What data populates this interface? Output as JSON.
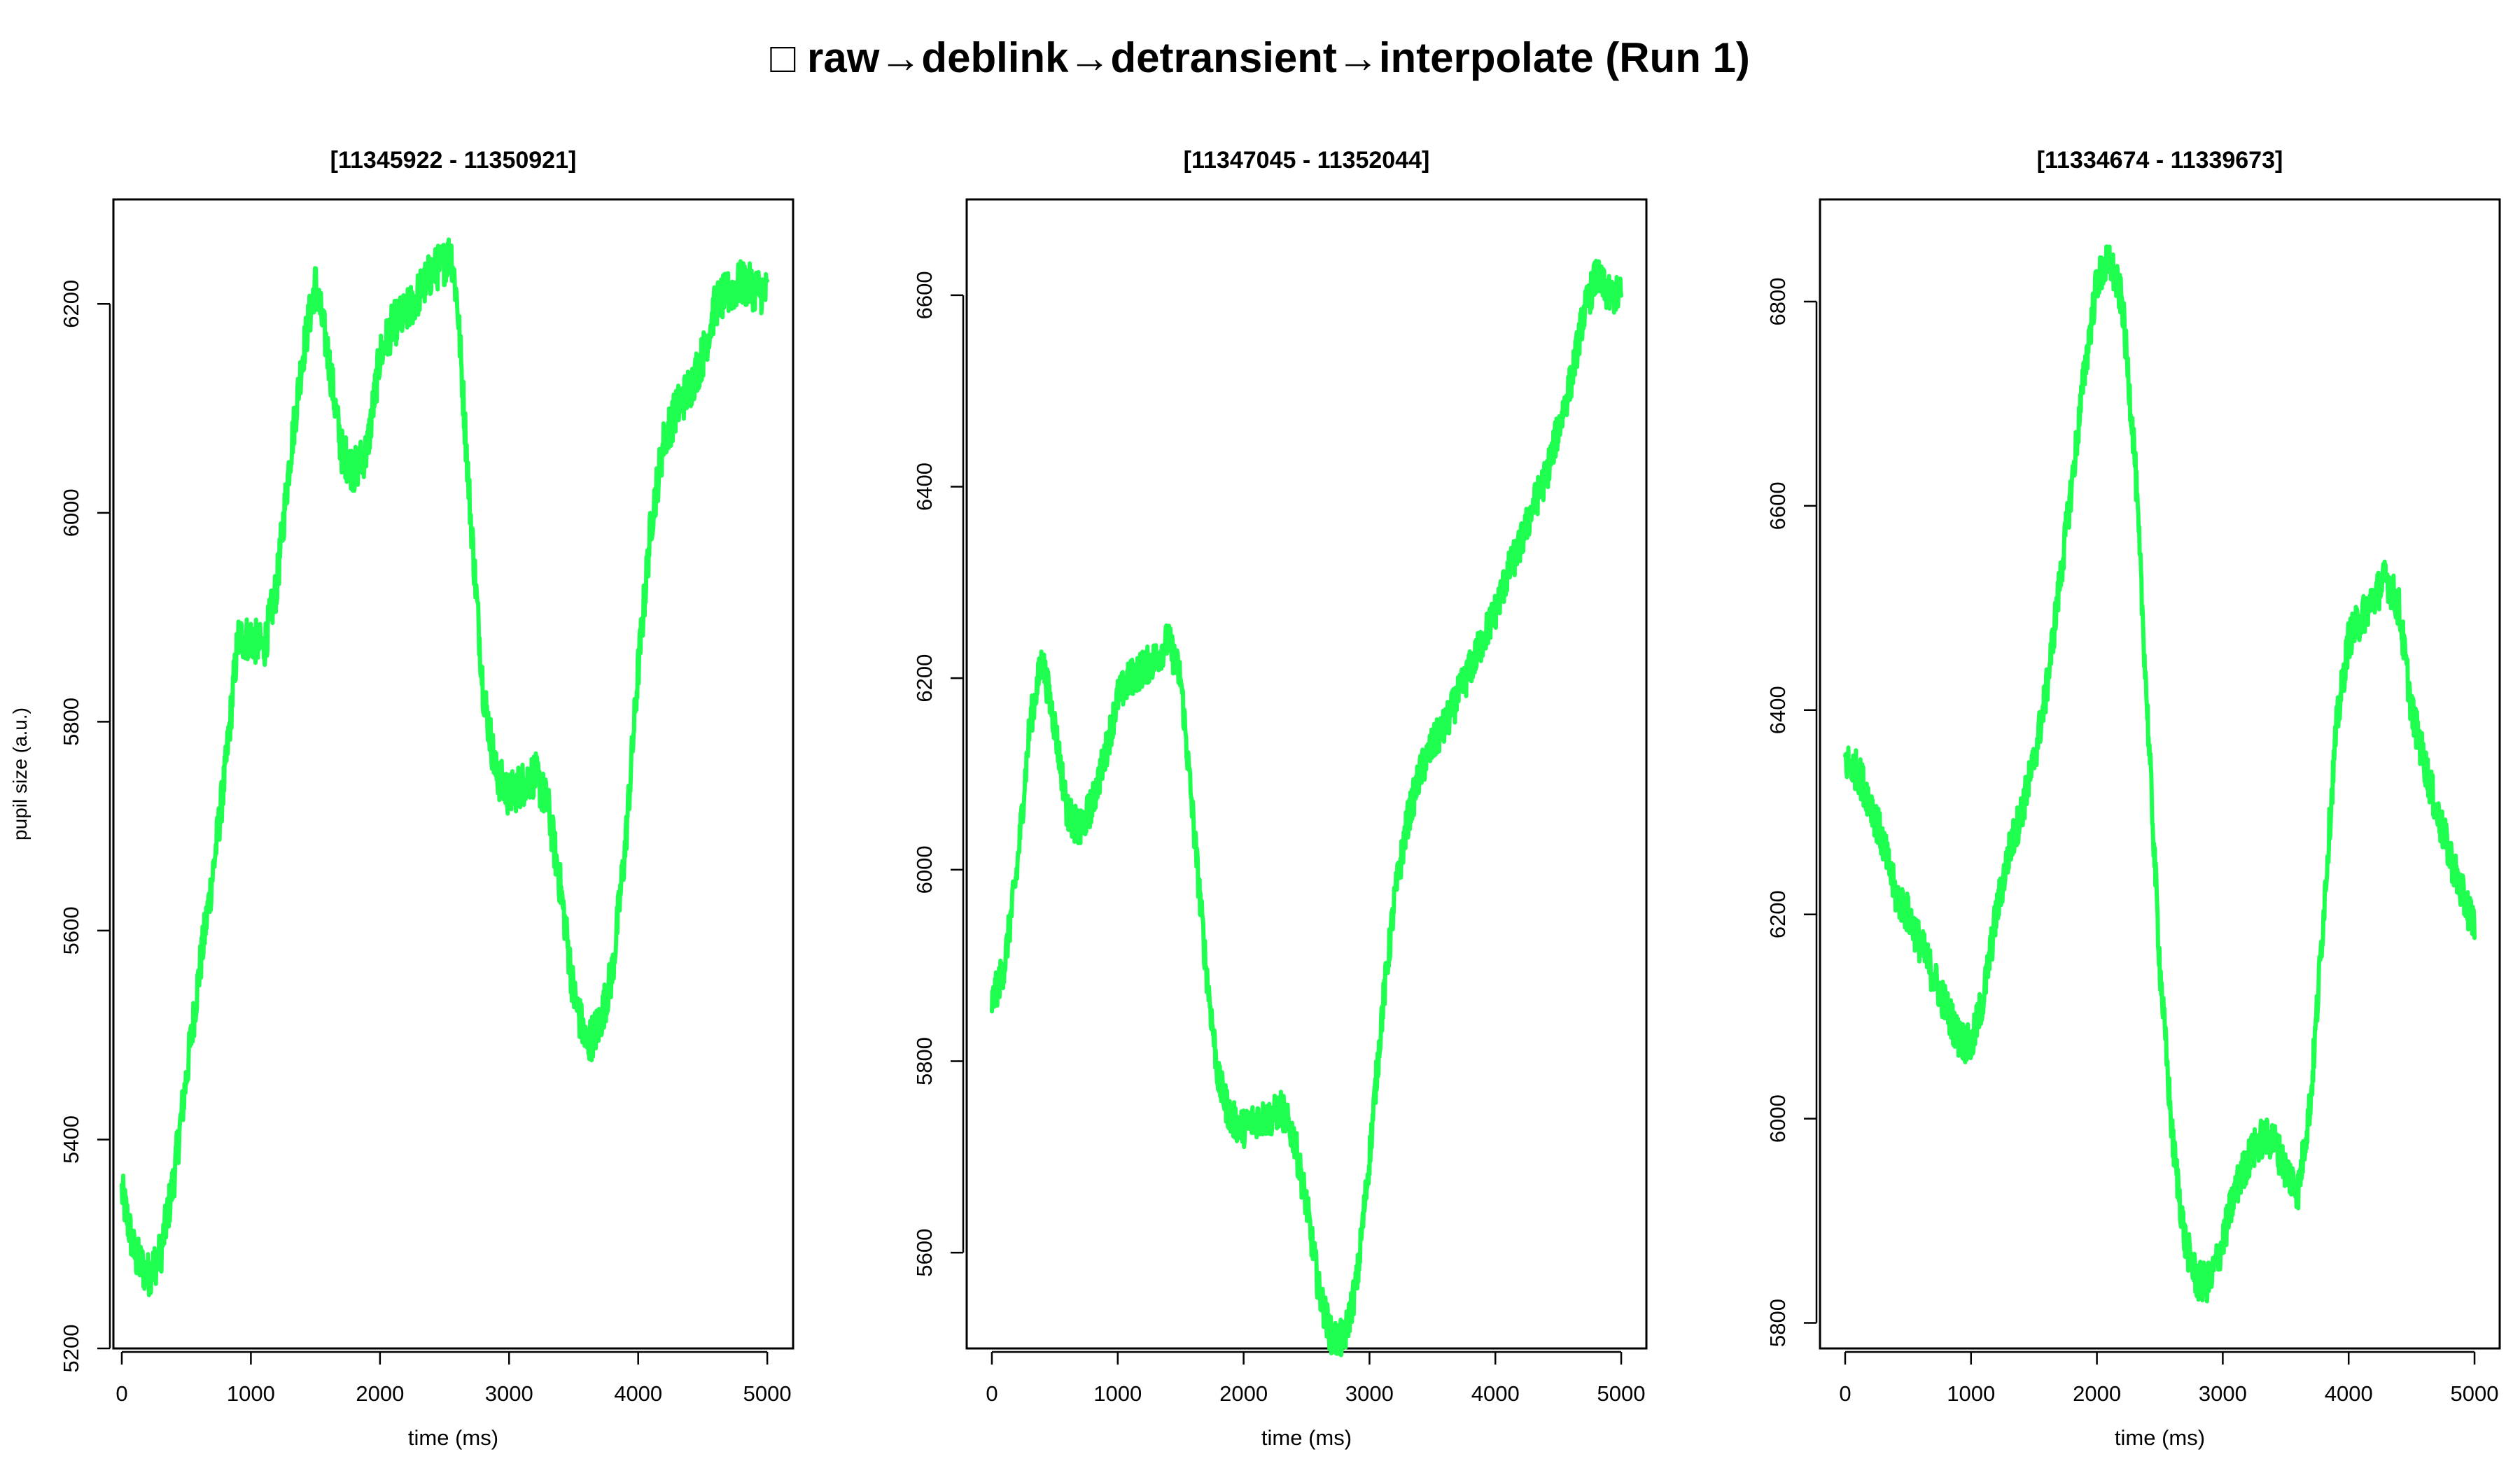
{
  "figure": {
    "title": "□ raw→deblink→detransient→interpolate (Run 1)",
    "line_color": "#1eff50"
  },
  "chart_data": [
    {
      "type": "line",
      "title": "[11345922 - 11350921]",
      "xlabel": "time (ms)",
      "ylabel": "pupil size (a.u.)",
      "xlim": [
        -65,
        5200
      ],
      "ylim": [
        5200,
        6300
      ],
      "xticks": [
        0,
        1000,
        2000,
        3000,
        4000,
        5000
      ],
      "yticks": [
        5200,
        5400,
        5600,
        5800,
        6000,
        6200
      ],
      "noise": 22,
      "series": [
        {
          "x": [
            0,
            100,
            200,
            300,
            400,
            500,
            600,
            700,
            800,
            900,
            1000,
            1100,
            1200,
            1300,
            1400,
            1500,
            1600,
            1700,
            1800,
            1900,
            2000,
            2100,
            2200,
            2300,
            2400,
            2500,
            2550,
            2600,
            2700,
            2800,
            2900,
            3000,
            3100,
            3200,
            3300,
            3400,
            3500,
            3600,
            3700,
            3800,
            3900,
            4000,
            4100,
            4200,
            4300,
            4400,
            4500,
            4600,
            4700,
            4800,
            4900,
            5000
          ],
          "y": [
            5350,
            5290,
            5270,
            5290,
            5360,
            5460,
            5560,
            5650,
            5750,
            5880,
            5880,
            5870,
            5930,
            6050,
            6150,
            6220,
            6150,
            6060,
            6040,
            6060,
            6150,
            6180,
            6190,
            6210,
            6230,
            6240,
            6250,
            6200,
            6000,
            5830,
            5750,
            5730,
            5740,
            5750,
            5720,
            5640,
            5540,
            5490,
            5510,
            5560,
            5680,
            5850,
            5990,
            6070,
            6100,
            6120,
            6150,
            6200,
            6210,
            6220,
            6215,
            6210
          ]
        }
      ]
    },
    {
      "type": "line",
      "title": "[11347045 - 11352044]",
      "xlabel": "time (ms)",
      "ylabel": "",
      "xlim": [
        -200,
        5200
      ],
      "ylim": [
        5500,
        6700
      ],
      "xticks": [
        0,
        1000,
        2000,
        3000,
        4000,
        5000
      ],
      "yticks": [
        5600,
        5800,
        6000,
        6200,
        6400,
        6600
      ],
      "noise": 20,
      "series": [
        {
          "x": [
            0,
            100,
            200,
            300,
            400,
            500,
            600,
            700,
            800,
            900,
            1000,
            1100,
            1200,
            1300,
            1400,
            1500,
            1600,
            1700,
            1800,
            1900,
            2000,
            2100,
            2200,
            2300,
            2400,
            2500,
            2600,
            2700,
            2800,
            2900,
            3000,
            3100,
            3200,
            3300,
            3400,
            3500,
            3600,
            3700,
            3800,
            3900,
            4000,
            4100,
            4200,
            4300,
            4400,
            4500,
            4600,
            4700,
            4800,
            4900,
            5000
          ],
          "y": [
            5860,
            5900,
            6000,
            6150,
            6220,
            6150,
            6060,
            6040,
            6070,
            6120,
            6180,
            6200,
            6210,
            6220,
            6240,
            6200,
            6050,
            5900,
            5780,
            5740,
            5730,
            5740,
            5740,
            5750,
            5720,
            5650,
            5560,
            5510,
            5510,
            5570,
            5700,
            5850,
            5970,
            6050,
            6100,
            6130,
            6150,
            6180,
            6210,
            6240,
            6270,
            6310,
            6340,
            6380,
            6410,
            6460,
            6510,
            6580,
            6620,
            6600,
            6600
          ]
        }
      ]
    },
    {
      "type": "line",
      "title": "[11334674 - 11339673]",
      "xlabel": "time (ms)",
      "ylabel": "",
      "xlim": [
        -200,
        5200
      ],
      "ylim": [
        5775,
        6900
      ],
      "xticks": [
        0,
        1000,
        2000,
        3000,
        4000,
        5000
      ],
      "yticks": [
        5800,
        6000,
        6200,
        6400,
        6600,
        6800
      ],
      "noise": 20,
      "series": [
        {
          "x": [
            0,
            100,
            200,
            300,
            400,
            500,
            600,
            700,
            800,
            900,
            1000,
            1100,
            1200,
            1300,
            1400,
            1500,
            1600,
            1700,
            1800,
            1900,
            2000,
            2100,
            2200,
            2300,
            2400,
            2500,
            2600,
            2700,
            2800,
            2900,
            3000,
            3100,
            3200,
            3300,
            3400,
            3500,
            3600,
            3700,
            3800,
            3900,
            4000,
            4100,
            4200,
            4300,
            4400,
            4500,
            4600,
            4700,
            4800,
            4900,
            5000
          ],
          "y": [
            6350,
            6340,
            6310,
            6270,
            6220,
            6200,
            6170,
            6140,
            6110,
            6080,
            6070,
            6120,
            6200,
            6260,
            6300,
            6350,
            6420,
            6520,
            6620,
            6730,
            6820,
            6840,
            6800,
            6650,
            6400,
            6150,
            5980,
            5880,
            5840,
            5840,
            5880,
            5930,
            5960,
            5980,
            5980,
            5950,
            5930,
            6020,
            6200,
            6380,
            6470,
            6490,
            6510,
            6530,
            6500,
            6400,
            6350,
            6300,
            6260,
            6220,
            6190
          ]
        }
      ]
    }
  ]
}
